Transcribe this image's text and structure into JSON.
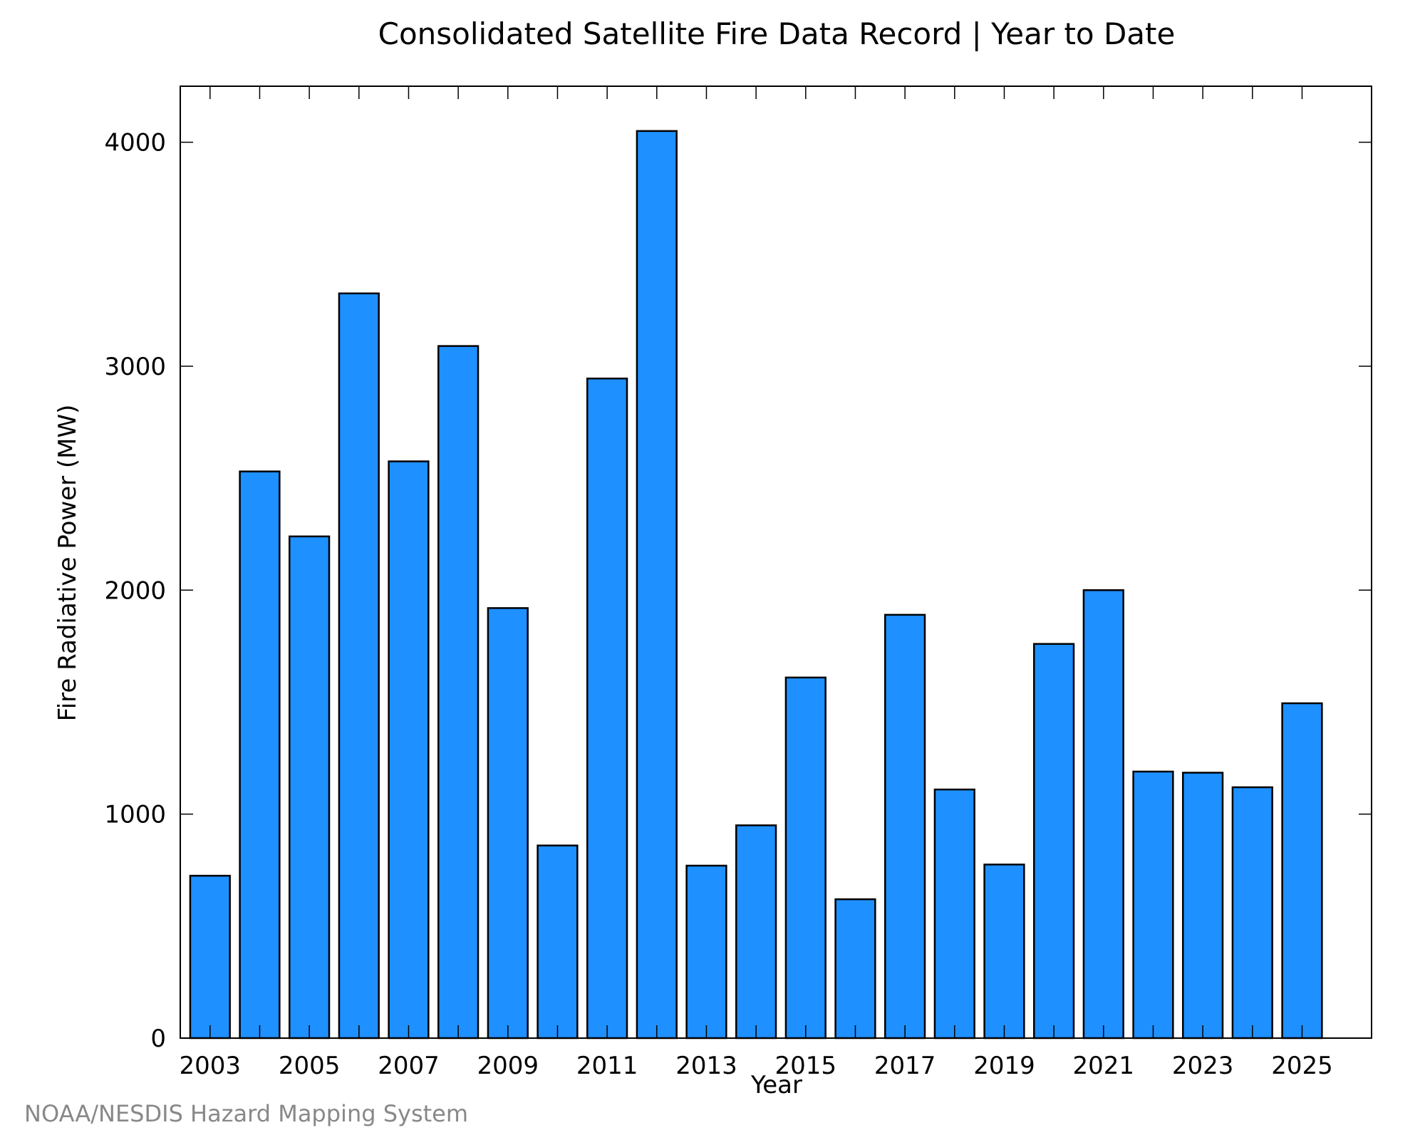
{
  "chart_data": {
    "type": "bar",
    "title": "Consolidated Satellite Fire Data Record | Year to Date",
    "xlabel": "Year",
    "ylabel": "Fire Radiative Power (MW)",
    "categories": [
      2003,
      2004,
      2005,
      2006,
      2007,
      2008,
      2009,
      2010,
      2011,
      2012,
      2013,
      2014,
      2015,
      2016,
      2017,
      2018,
      2019,
      2020,
      2021,
      2022,
      2023,
      2024,
      2025
    ],
    "values": [
      725,
      2530,
      2240,
      3325,
      2575,
      3090,
      1920,
      860,
      2945,
      4050,
      770,
      950,
      1610,
      620,
      1890,
      1110,
      775,
      1760,
      2000,
      1190,
      1185,
      1120,
      1495
    ],
    "xtick_labels": [
      "2003",
      "2005",
      "2007",
      "2009",
      "2011",
      "2013",
      "2015",
      "2017",
      "2019",
      "2021",
      "2023",
      "2025"
    ],
    "xtick_values": [
      2003,
      2005,
      2007,
      2009,
      2011,
      2013,
      2015,
      2017,
      2019,
      2021,
      2023,
      2025
    ],
    "ytick_labels": [
      "0",
      "1000",
      "2000",
      "3000",
      "4000"
    ],
    "ytick_values": [
      0,
      1000,
      2000,
      3000,
      4000
    ],
    "xlim": [
      2002.4,
      2026.4
    ],
    "ylim": [
      0,
      4250
    ],
    "bar_color": "#1e90ff",
    "grid": false,
    "legend": "none"
  },
  "credit": "NOAA/NESDIS Hazard Mapping System"
}
